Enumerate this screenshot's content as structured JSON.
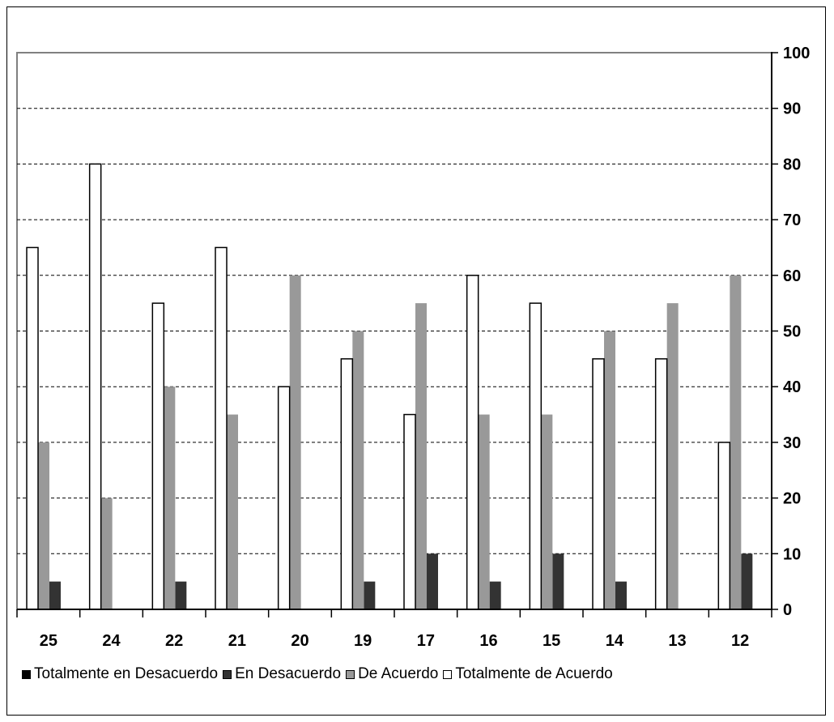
{
  "chart_data": {
    "type": "bar",
    "title": "",
    "xlabel": "",
    "ylabel": "",
    "categories": [
      "25",
      "24",
      "22",
      "21",
      "20",
      "19",
      "17",
      "16",
      "15",
      "14",
      "13",
      "12"
    ],
    "series": [
      {
        "name": "Totalmente en Desacuerdo",
        "color": "#000000",
        "values": [
          0,
          0,
          0,
          0,
          0,
          0,
          0,
          0,
          0,
          0,
          0,
          0
        ]
      },
      {
        "name": "En Desacuerdo",
        "color": "#333333",
        "values": [
          5,
          0,
          5,
          0,
          0,
          5,
          10,
          5,
          10,
          5,
          0,
          10
        ]
      },
      {
        "name": "De Acuerdo",
        "color": "#999999",
        "values": [
          30,
          20,
          40,
          35,
          60,
          50,
          55,
          35,
          35,
          50,
          55,
          60
        ]
      },
      {
        "name": "Totalmente de Acuerdo",
        "color": "#ffffff",
        "values": [
          65,
          80,
          55,
          65,
          40,
          45,
          35,
          60,
          55,
          45,
          45,
          30
        ]
      }
    ],
    "ylim": [
      0,
      100
    ],
    "yticks": [
      "0",
      "10",
      "20",
      "30",
      "40",
      "50",
      "60",
      "70",
      "80",
      "90",
      "100"
    ],
    "y_axis_side": "right",
    "grid": "horizontal dashed",
    "legend_position": "bottom"
  }
}
